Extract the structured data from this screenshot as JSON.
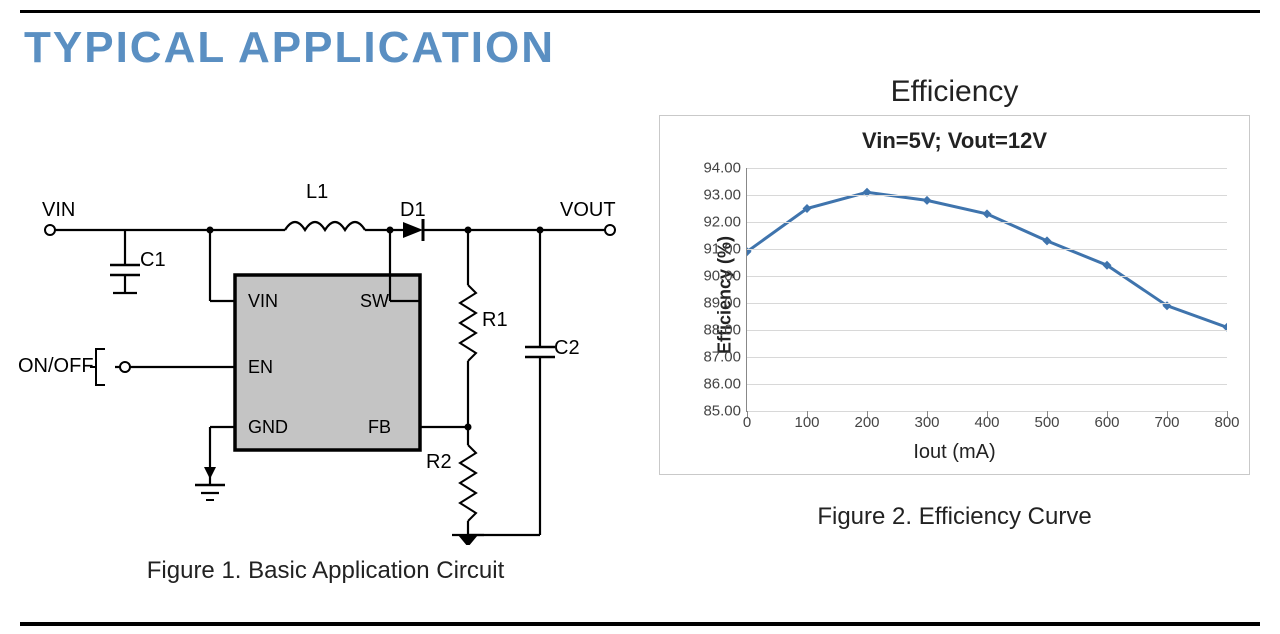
{
  "page": {
    "heading": "TYPICAL APPLICATION",
    "heading_color": "#5a8fc2",
    "rule_color": "#000000",
    "fig1_caption": "Figure 1. Basic Application Circuit",
    "fig2_caption": "Figure 2. Efficiency Curve"
  },
  "circuit": {
    "terminals": {
      "vin": "VIN",
      "vout": "VOUT",
      "onoff": "ON/OFF"
    },
    "components": {
      "C1": "C1",
      "L1": "L1",
      "D1": "D1",
      "R1": "R1",
      "R2": "R2",
      "C2": "C2"
    },
    "ic_pins": {
      "vin": "VIN",
      "sw": "SW",
      "en": "EN",
      "gnd": "GND",
      "fb": "FB"
    },
    "ic_body_fill": "#c4c4c4",
    "stroke": "#000000",
    "line_w_main": 2.2,
    "line_w_thin": 1.6
  },
  "efficiency_heading": "Efficiency",
  "chart": {
    "type": "line",
    "title": "Vin=5V; Vout=12V",
    "xlabel": "Iout (mA)",
    "ylabel": "Efficiency (%)",
    "x": [
      0,
      100,
      200,
      300,
      400,
      500,
      600,
      700,
      800
    ],
    "y": [
      90.9,
      92.5,
      93.1,
      92.8,
      92.3,
      91.3,
      90.4,
      88.9,
      88.1
    ],
    "xlim": [
      0,
      800
    ],
    "ylim": [
      85,
      94
    ],
    "xtick_step": 100,
    "ytick_step": 1,
    "ytick_format": "fixed2",
    "series_color": "#3f74ad",
    "marker": "diamond",
    "marker_size": 9,
    "line_width": 3,
    "grid_color": "#d8d8d8",
    "border_color": "#c9c9c9",
    "background": "#ffffff",
    "title_fontsize": 22,
    "tick_fontsize": 15,
    "label_fontsize": 18
  }
}
